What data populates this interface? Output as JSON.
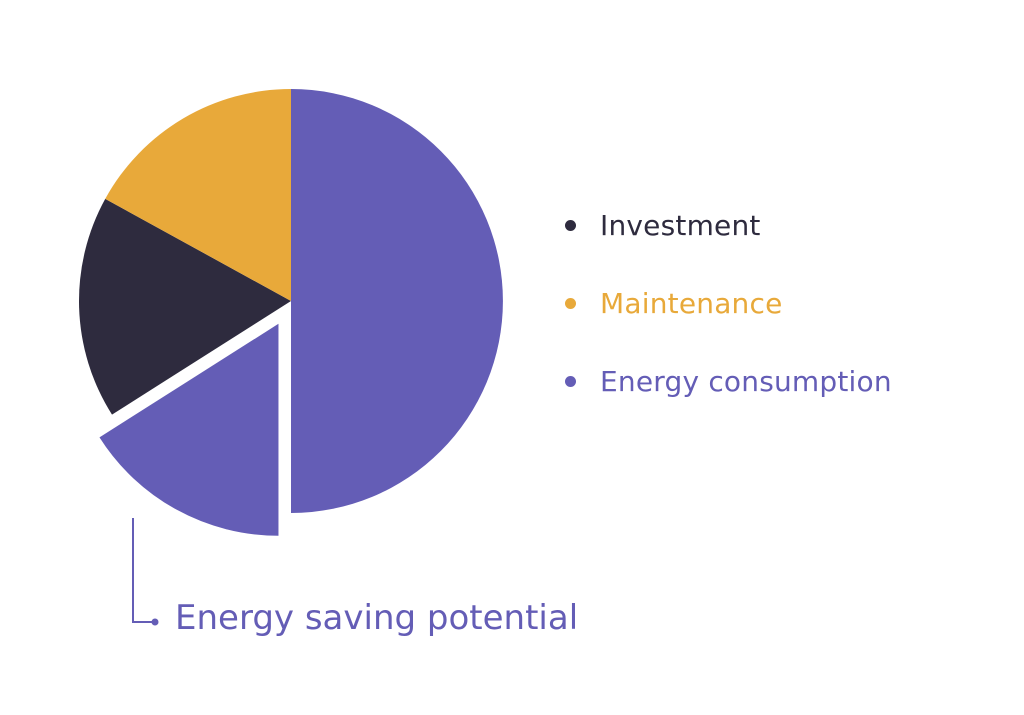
{
  "chart_data": {
    "type": "pie",
    "title": "",
    "slices": [
      {
        "label": "Energy consumption",
        "value": 50,
        "color": "#645db6"
      },
      {
        "label": "Energy saving potential",
        "value": 16,
        "color": "#645db6",
        "exploded": true
      },
      {
        "label": "Investment",
        "value": 17,
        "color": "#2e2b3e"
      },
      {
        "label": "Maintenance",
        "value": 17,
        "color": "#e8a93a"
      }
    ],
    "legend": {
      "placement": "right",
      "items": [
        {
          "label": "Investment",
          "color": "#2e2b3e"
        },
        {
          "label": "Maintenance",
          "color": "#e8a93a"
        },
        {
          "label": "Energy consumption",
          "color": "#645db6"
        }
      ]
    },
    "annotations": [
      {
        "text": "Energy saving potential",
        "target": "Energy saving potential",
        "color": "#645db6"
      }
    ]
  }
}
